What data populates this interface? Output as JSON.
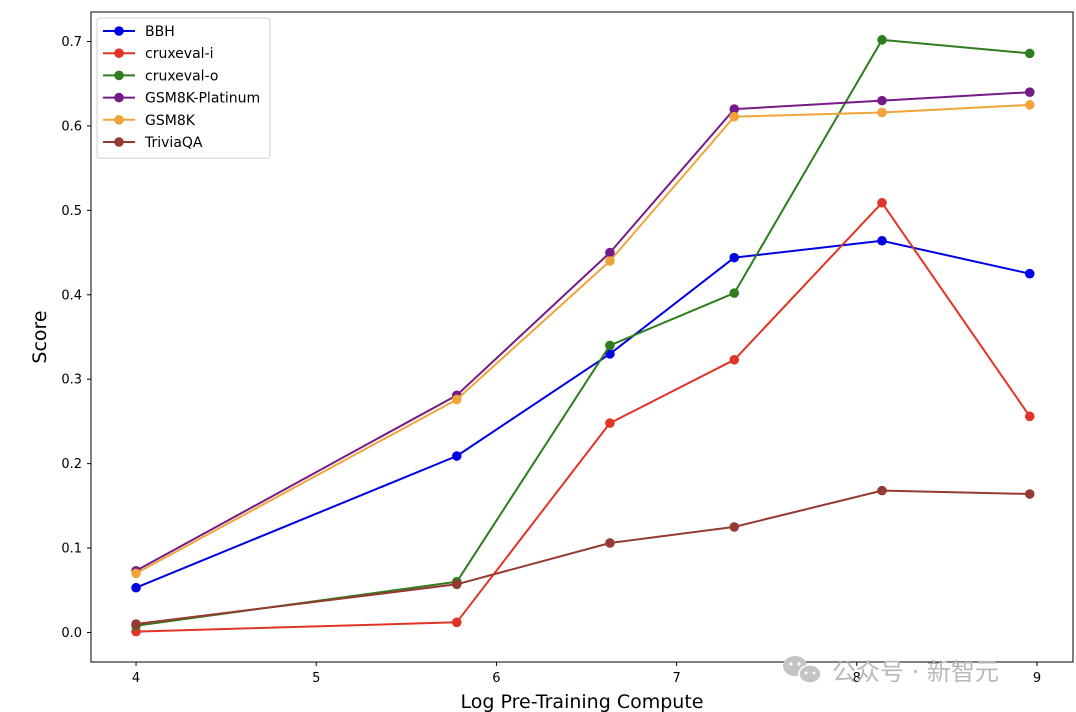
{
  "watermark": {
    "text": "公众号 · 新智元",
    "icon": "wechat-icon"
  },
  "chart_data": {
    "type": "line",
    "xlabel": "Log Pre-Training Compute",
    "ylabel": "Score",
    "xlim": [
      3.75,
      9.2
    ],
    "ylim": [
      -0.035,
      0.735
    ],
    "xticks": [
      4,
      5,
      6,
      7,
      8,
      9
    ],
    "yticks": [
      0.0,
      0.1,
      0.2,
      0.3,
      0.4,
      0.5,
      0.6,
      0.7
    ],
    "xtick_labels": [
      "4",
      "5",
      "6",
      "7",
      "8",
      "9"
    ],
    "ytick_labels": [
      "0.0",
      "0.1",
      "0.2",
      "0.3",
      "0.4",
      "0.5",
      "0.6",
      "0.7"
    ],
    "x": [
      4.0,
      5.78,
      6.63,
      7.32,
      8.14,
      8.96
    ],
    "grid": false,
    "legend_position": "upper-left",
    "series": [
      {
        "name": "BBH",
        "color": "#0000e6",
        "values": [
          0.053,
          0.209,
          0.33,
          0.444,
          0.464,
          0.425
        ]
      },
      {
        "name": "cruxeval-i",
        "color": "#e03426",
        "values": [
          0.001,
          0.012,
          0.248,
          0.323,
          0.509,
          0.256
        ]
      },
      {
        "name": "cruxeval-o",
        "color": "#2e7d1e",
        "values": [
          0.008,
          0.06,
          0.34,
          0.402,
          0.702,
          0.686
        ]
      },
      {
        "name": "GSM8K-Platinum",
        "color": "#751b85",
        "values": [
          0.073,
          0.281,
          0.45,
          0.62,
          0.63,
          0.64
        ]
      },
      {
        "name": "GSM8K",
        "color": "#f0a43a",
        "values": [
          0.07,
          0.276,
          0.44,
          0.611,
          0.616,
          0.625
        ]
      },
      {
        "name": "TriviaQA",
        "color": "#953a33",
        "values": [
          0.01,
          0.057,
          0.106,
          0.125,
          0.168,
          0.164
        ]
      }
    ]
  }
}
